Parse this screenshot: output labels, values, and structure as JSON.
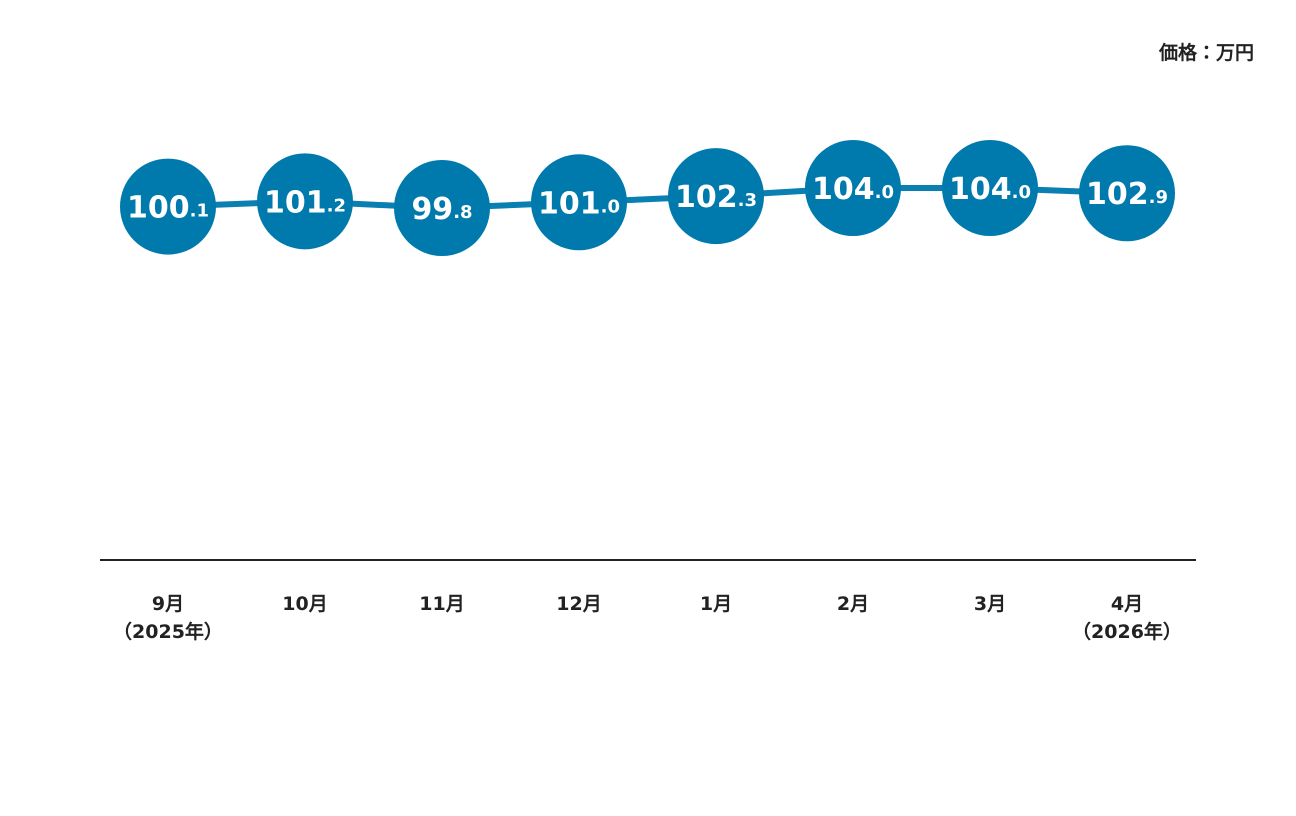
{
  "chart_data": {
    "type": "line",
    "unit_label": "価格：万円",
    "categories": [
      "9月\n（2025年）",
      "10月",
      "11月",
      "12月",
      "1月",
      "2月",
      "3月",
      "4月\n（2026年）"
    ],
    "values": [
      100.1,
      101.2,
      99.8,
      101.0,
      102.3,
      104.0,
      104.0,
      102.9
    ],
    "value_labels": [
      "100.1",
      "101.2",
      "99.8",
      "101.0",
      "102.3",
      "104.0",
      "104.0",
      "102.9"
    ],
    "color": "#0a7fb2"
  }
}
